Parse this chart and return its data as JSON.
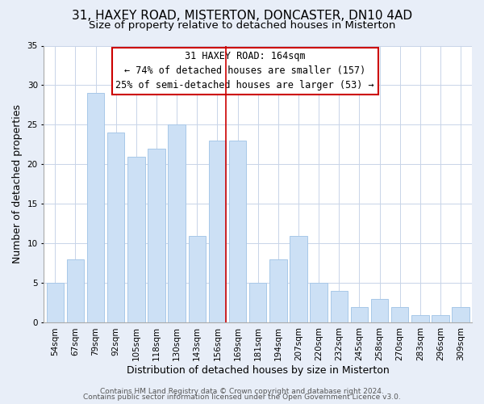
{
  "title": "31, HAXEY ROAD, MISTERTON, DONCASTER, DN10 4AD",
  "subtitle": "Size of property relative to detached houses in Misterton",
  "xlabel": "Distribution of detached houses by size in Misterton",
  "ylabel": "Number of detached properties",
  "footer_line1": "Contains HM Land Registry data © Crown copyright and database right 2024.",
  "footer_line2": "Contains public sector information licensed under the Open Government Licence v3.0.",
  "annotation_line1": "31 HAXEY ROAD: 164sqm",
  "annotation_line2": "← 74% of detached houses are smaller (157)",
  "annotation_line3": "25% of semi-detached houses are larger (53) →",
  "bar_labels": [
    "54sqm",
    "67sqm",
    "79sqm",
    "92sqm",
    "105sqm",
    "118sqm",
    "130sqm",
    "143sqm",
    "156sqm",
    "169sqm",
    "181sqm",
    "194sqm",
    "207sqm",
    "220sqm",
    "232sqm",
    "245sqm",
    "258sqm",
    "270sqm",
    "283sqm",
    "296sqm",
    "309sqm"
  ],
  "bar_values": [
    5,
    8,
    29,
    24,
    21,
    22,
    25,
    11,
    23,
    23,
    5,
    8,
    11,
    5,
    4,
    2,
    3,
    2,
    1,
    1,
    2
  ],
  "bar_color": "#cce0f5",
  "bar_edge_color": "#a8c8e8",
  "vline_color": "#cc0000",
  "vline_x_index": 8,
  "ylim": [
    0,
    35
  ],
  "yticks": [
    0,
    5,
    10,
    15,
    20,
    25,
    30,
    35
  ],
  "bg_color": "#e8eef8",
  "plot_bg_color": "#ffffff",
  "grid_color": "#c8d4e8",
  "annotation_box_facecolor": "#ffffff",
  "annotation_border_color": "#cc0000",
  "title_fontsize": 11,
  "subtitle_fontsize": 9.5,
  "axis_label_fontsize": 9,
  "tick_fontsize": 7.5,
  "annotation_fontsize": 8.5,
  "footer_fontsize": 6.5
}
